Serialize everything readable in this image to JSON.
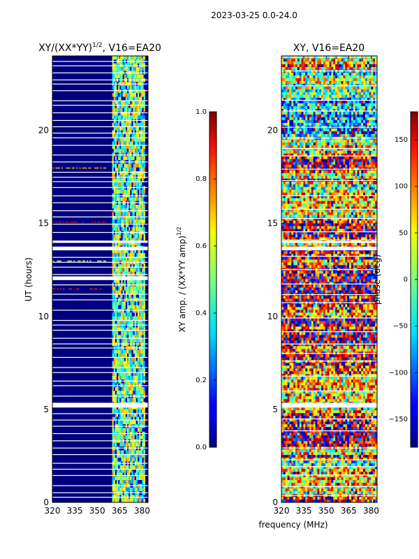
{
  "figure": {
    "suptitle": "2023-03-25 0.0-24.0",
    "shared_xlabel": "frequency (MHz)"
  },
  "chart_data": [
    {
      "type": "heatmap",
      "title_main": "XY/(XX*YY)",
      "title_sup": "1/2",
      "title_rest": ", V16=EA20",
      "xlabel": "",
      "ylabel": "UT (hours)",
      "xlim": [
        320,
        384
      ],
      "ylim": [
        0,
        24
      ],
      "x_ticks": [
        320,
        335,
        350,
        365,
        380
      ],
      "y_ticks": [
        0,
        5,
        10,
        15,
        20
      ],
      "colorbar": {
        "label_main": "XY amp. / (XX*YY amp)",
        "label_sup": "1/2",
        "min": 0.0,
        "max": 1.0,
        "ticks": [
          "0.0",
          "0.2",
          "0.4",
          "0.6",
          "0.8",
          "1.0"
        ],
        "colormap": "jet"
      },
      "flagged_band_MHz": [
        320,
        360
      ],
      "active_band_MHz": [
        360,
        382
      ],
      "flagged_value": 0.0,
      "active_value_range": [
        0.25,
        0.75
      ],
      "gap_intervals_h": [
        [
          5.1,
          5.35
        ],
        [
          13.55,
          13.75
        ],
        [
          13.95,
          14.05
        ],
        [
          11.95,
          12.15
        ]
      ]
    },
    {
      "type": "heatmap",
      "title_main": "XY, V16=EA20",
      "title_sup": "",
      "title_rest": "",
      "xlabel": "",
      "ylabel": "",
      "xlim": [
        320,
        384
      ],
      "ylim": [
        0,
        24
      ],
      "x_ticks": [
        320,
        335,
        350,
        365,
        380
      ],
      "y_ticks": [
        0,
        5,
        10,
        15,
        20
      ],
      "colorbar": {
        "label_main": "phase (deg)",
        "label_sup": "",
        "min": -180,
        "max": 180,
        "ticks": [
          "−150",
          "−100",
          "−50",
          "0",
          "50",
          "100",
          "150"
        ],
        "tick_values": [
          -150,
          -100,
          -50,
          0,
          50,
          100,
          150
        ],
        "colormap": "jet"
      },
      "value_range_deg": [
        -180,
        180
      ],
      "gap_intervals_h": [
        [
          5.1,
          5.35
        ],
        [
          13.55,
          13.75
        ],
        [
          13.95,
          14.05
        ]
      ]
    }
  ],
  "colors": {
    "jet_dark_blue": "#00007f",
    "jet_dark_red": "#7f0000",
    "gap": "#ffffff"
  }
}
